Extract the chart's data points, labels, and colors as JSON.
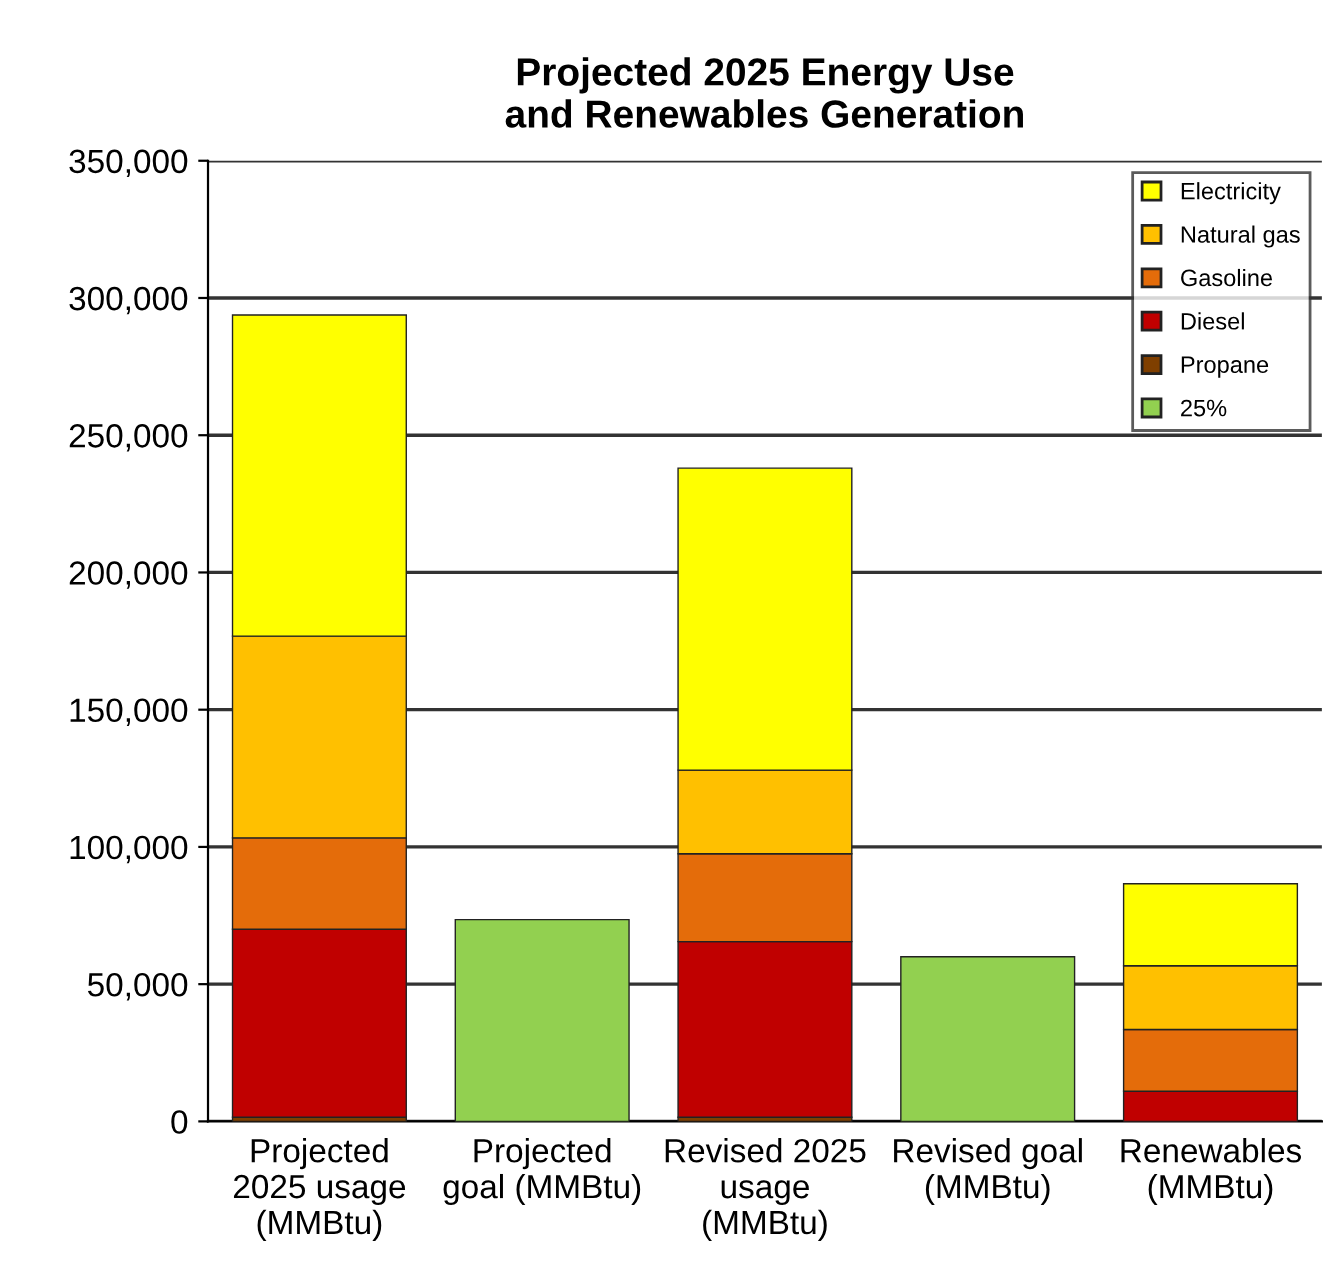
{
  "chart_data": {
    "type": "bar",
    "stacked": true,
    "title": "Projected 2025 Energy Use\nand Renewables Generation",
    "categories": [
      "Projected\n2025 usage\n(MMBtu)",
      "Projected\ngoal (MMBtu)",
      "Revised 2025\nusage\n(MMBtu)",
      "Revised goal\n(MMBtu)",
      "Renewables\n(MMBtu)"
    ],
    "series": [
      {
        "name": "Propane",
        "color": "#7f3f00",
        "values": [
          1500,
          null,
          1500,
          null,
          0
        ]
      },
      {
        "name": "Diesel",
        "color": "#c00000",
        "values": [
          68500,
          null,
          64000,
          null,
          11000
        ]
      },
      {
        "name": "Gasoline",
        "color": "#e46c0a",
        "values": [
          33300,
          null,
          32000,
          null,
          22500
        ]
      },
      {
        "name": "Natural gas",
        "color": "#ffc000",
        "values": [
          73500,
          null,
          30500,
          null,
          23200
        ]
      },
      {
        "name": "Electricity",
        "color": "#ffff00",
        "values": [
          117000,
          null,
          110000,
          null,
          29900
        ]
      },
      {
        "name": "25%",
        "color": "#92d050",
        "values": [
          null,
          73500,
          null,
          60000,
          null
        ]
      }
    ],
    "ylim": [
      0,
      350000
    ],
    "yticks": [
      {
        "value": 0,
        "label": "0"
      },
      {
        "value": 50000,
        "label": "50,000"
      },
      {
        "value": 100000,
        "label": "100,000"
      },
      {
        "value": 150000,
        "label": "150,000"
      },
      {
        "value": 200000,
        "label": "200,000"
      },
      {
        "value": 250000,
        "label": "250,000"
      },
      {
        "value": 300000,
        "label": "300,000"
      },
      {
        "value": 350000,
        "label": "350,000"
      }
    ],
    "grid": "y",
    "legend": "top right"
  }
}
